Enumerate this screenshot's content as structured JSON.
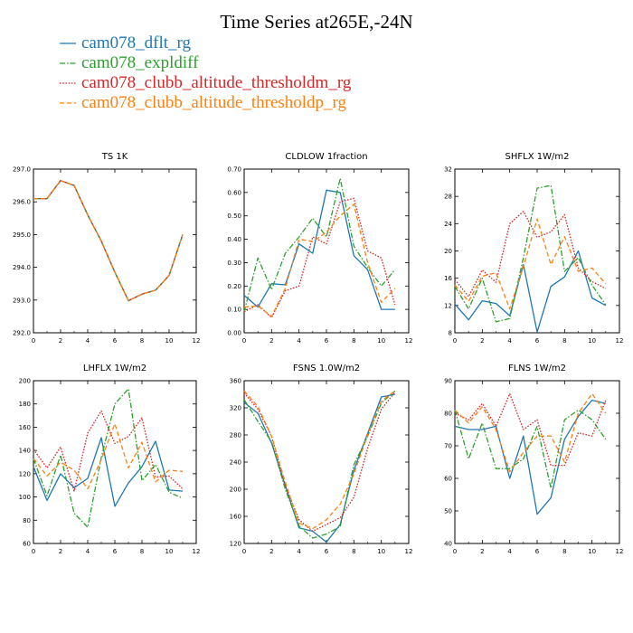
{
  "title": "Time Series at265E,-24N",
  "legend": [
    {
      "label": "cam078_dflt_rg",
      "color": "#1f77b4",
      "dash": "solid"
    },
    {
      "label": "cam078_expldiff",
      "color": "#2ca02c",
      "dash": "dashdot"
    },
    {
      "label": "cam078_clubb_altitude_thresholdm_rg",
      "color": "#d62728",
      "dash": "dotted"
    },
    {
      "label": "cam078_clubb_altitude_thresholdp_rg",
      "color": "#ff7f0e",
      "dash": "dashed"
    }
  ],
  "chart_data": [
    {
      "type": "line",
      "title": "TS   1K",
      "x": [
        0,
        1,
        2,
        3,
        4,
        5,
        6,
        7,
        8,
        9,
        10,
        11
      ],
      "xlim": [
        0,
        12
      ],
      "xticks": [
        0,
        2,
        4,
        6,
        8,
        10,
        12
      ],
      "ylim": [
        292,
        297
      ],
      "yticks": [
        "292.0",
        "293.0",
        "294.0",
        "295.0",
        "296.0",
        "297.0"
      ],
      "series": [
        {
          "name": "cam078_dflt_rg",
          "values": [
            296.1,
            296.1,
            296.65,
            296.5,
            295.6,
            294.8,
            293.85,
            292.98,
            293.18,
            293.3,
            293.75,
            295.0
          ]
        },
        {
          "name": "cam078_expldiff",
          "values": [
            296.1,
            296.1,
            296.65,
            296.5,
            295.6,
            294.8,
            293.85,
            292.98,
            293.18,
            293.3,
            293.75,
            295.0
          ]
        },
        {
          "name": "cam078_clubb_altitude_thresholdm_rg",
          "values": [
            296.1,
            296.1,
            296.65,
            296.5,
            295.6,
            294.8,
            293.85,
            292.98,
            293.18,
            293.3,
            293.75,
            295.0
          ]
        },
        {
          "name": "cam078_clubb_altitude_thresholdp_rg",
          "values": [
            296.1,
            296.1,
            296.65,
            296.5,
            295.6,
            294.8,
            293.85,
            292.98,
            293.18,
            293.3,
            293.75,
            295.0
          ]
        }
      ]
    },
    {
      "type": "line",
      "title": "CLDLOW   1fraction",
      "x": [
        0,
        1,
        2,
        3,
        4,
        5,
        6,
        7,
        8,
        9,
        10,
        11
      ],
      "xlim": [
        0,
        12
      ],
      "xticks": [
        0,
        2,
        4,
        6,
        8,
        10,
        12
      ],
      "ylim": [
        0,
        0.7
      ],
      "yticks": [
        "0.00",
        "0.10",
        "0.20",
        "0.30",
        "0.40",
        "0.50",
        "0.60",
        "0.70"
      ],
      "series": [
        {
          "name": "cam078_dflt_rg",
          "values": [
            0.16,
            0.11,
            0.21,
            0.205,
            0.38,
            0.34,
            0.61,
            0.6,
            0.33,
            0.27,
            0.1,
            0.1
          ]
        },
        {
          "name": "cam078_expldiff",
          "values": [
            0.09,
            0.32,
            0.185,
            0.34,
            0.41,
            0.49,
            0.41,
            0.66,
            0.37,
            0.28,
            0.2,
            0.27
          ]
        },
        {
          "name": "cam078_clubb_altitude_thresholdm_rg",
          "values": [
            0.09,
            0.12,
            0.065,
            0.18,
            0.2,
            0.41,
            0.38,
            0.56,
            0.575,
            0.35,
            0.32,
            0.12
          ]
        },
        {
          "name": "cam078_clubb_altitude_thresholdp_rg",
          "values": [
            0.11,
            0.115,
            0.07,
            0.19,
            0.4,
            0.39,
            0.43,
            0.5,
            0.55,
            0.3,
            0.13,
            0.19
          ]
        }
      ]
    },
    {
      "type": "line",
      "title": "SHFLX   1W/m2",
      "x": [
        0,
        1,
        2,
        3,
        4,
        5,
        6,
        7,
        8,
        9,
        10,
        11
      ],
      "xlim": [
        0,
        12
      ],
      "xticks": [
        0,
        2,
        4,
        6,
        8,
        10,
        12
      ],
      "ylim": [
        8,
        32
      ],
      "yticks": [
        "8",
        "12",
        "16",
        "20",
        "24",
        "28",
        "32"
      ],
      "series": [
        {
          "name": "cam078_dflt_rg",
          "values": [
            12.2,
            9.9,
            12.7,
            12.3,
            10.5,
            18.0,
            8.1,
            14.8,
            16.2,
            20.0,
            13.1,
            12.0
          ]
        },
        {
          "name": "cam078_expldiff",
          "values": [
            14.8,
            11.5,
            16.0,
            9.6,
            10.1,
            19.0,
            29.2,
            29.6,
            17.0,
            19.0,
            15.0,
            12.1
          ]
        },
        {
          "name": "cam078_clubb_altitude_thresholdm_rg",
          "values": [
            15.8,
            13.3,
            17.2,
            15.4,
            24.0,
            25.8,
            22.0,
            22.8,
            25.3,
            17.5,
            15.5,
            14.5
          ]
        },
        {
          "name": "cam078_clubb_altitude_thresholdp_rg",
          "values": [
            15.0,
            12.6,
            16.3,
            16.8,
            11.5,
            17.7,
            24.7,
            18.0,
            22.1,
            17.0,
            17.5,
            15.2
          ]
        }
      ]
    },
    {
      "type": "line",
      "title": "LHFLX   1W/m2",
      "x": [
        0,
        1,
        2,
        3,
        4,
        5,
        6,
        7,
        8,
        9,
        10,
        11
      ],
      "xlim": [
        0,
        12
      ],
      "xticks": [
        0,
        2,
        4,
        6,
        8,
        10,
        12
      ],
      "ylim": [
        60,
        200
      ],
      "yticks": [
        "60",
        "80",
        "100",
        "120",
        "140",
        "160",
        "180",
        "200"
      ],
      "series": [
        {
          "name": "cam078_dflt_rg",
          "values": [
            126,
            97,
            120,
            108,
            116,
            151,
            92,
            112,
            126,
            148,
            106,
            105
          ]
        },
        {
          "name": "cam078_expldiff",
          "values": [
            133,
            101,
            136,
            86,
            74,
            134,
            180,
            193,
            114,
            128,
            104,
            99
          ]
        },
        {
          "name": "cam078_clubb_altitude_thresholdm_rg",
          "values": [
            141,
            125,
            143,
            105,
            155,
            174,
            146,
            152,
            168,
            117,
            118,
            107
          ]
        },
        {
          "name": "cam078_clubb_altitude_thresholdp_rg",
          "values": [
            133,
            118,
            130,
            123,
            107,
            132,
            163,
            125,
            147,
            113,
            123,
            122
          ]
        }
      ]
    },
    {
      "type": "line",
      "title": "FSNS   1.0W/m2",
      "x": [
        0,
        1,
        2,
        3,
        4,
        5,
        6,
        7,
        8,
        9,
        10,
        11
      ],
      "xlim": [
        0,
        12
      ],
      "xticks": [
        0,
        2,
        4,
        6,
        8,
        10,
        12
      ],
      "ylim": [
        120,
        360
      ],
      "yticks": [
        "120",
        "160",
        "200",
        "240",
        "280",
        "320",
        "360"
      ],
      "series": [
        {
          "name": "cam078_dflt_rg",
          "values": [
            328,
            312,
            268,
            205,
            143,
            138,
            122,
            148,
            228,
            282,
            336,
            340
          ]
        },
        {
          "name": "cam078_expldiff",
          "values": [
            332,
            300,
            270,
            200,
            146,
            128,
            134,
            145,
            236,
            278,
            327,
            345
          ]
        },
        {
          "name": "cam078_clubb_altitude_thresholdm_rg",
          "values": [
            342,
            318,
            278,
            205,
            155,
            138,
            148,
            158,
            188,
            260,
            318,
            343
          ]
        },
        {
          "name": "cam078_clubb_altitude_thresholdp_rg",
          "values": [
            345,
            322,
            278,
            210,
            150,
            142,
            155,
            178,
            222,
            280,
            330,
            345
          ]
        }
      ]
    },
    {
      "type": "line",
      "title": "FLNS   1W/m2",
      "x": [
        0,
        1,
        2,
        3,
        4,
        5,
        6,
        7,
        8,
        9,
        10,
        11
      ],
      "xlim": [
        0,
        12
      ],
      "xticks": [
        0,
        2,
        4,
        6,
        8,
        10,
        12
      ],
      "ylim": [
        40,
        90
      ],
      "yticks": [
        "40",
        "50",
        "60",
        "70",
        "80",
        "90"
      ],
      "series": [
        {
          "name": "cam078_dflt_rg",
          "values": [
            76,
            75,
            75,
            76,
            60,
            73,
            49,
            54,
            72,
            79,
            84,
            83
          ]
        },
        {
          "name": "cam078_expldiff",
          "values": [
            81,
            66,
            77,
            63,
            63,
            66,
            76,
            57,
            78,
            81,
            78,
            72
          ]
        },
        {
          "name": "cam078_clubb_altitude_thresholdm_rg",
          "values": [
            80,
            78,
            83,
            76,
            86,
            75,
            78,
            64,
            64,
            74,
            73,
            84
          ]
        },
        {
          "name": "cam078_clubb_altitude_thresholdp_rg",
          "values": [
            81,
            77,
            82,
            75,
            62,
            68,
            73,
            73,
            65,
            80,
            86,
            80
          ]
        }
      ]
    }
  ]
}
